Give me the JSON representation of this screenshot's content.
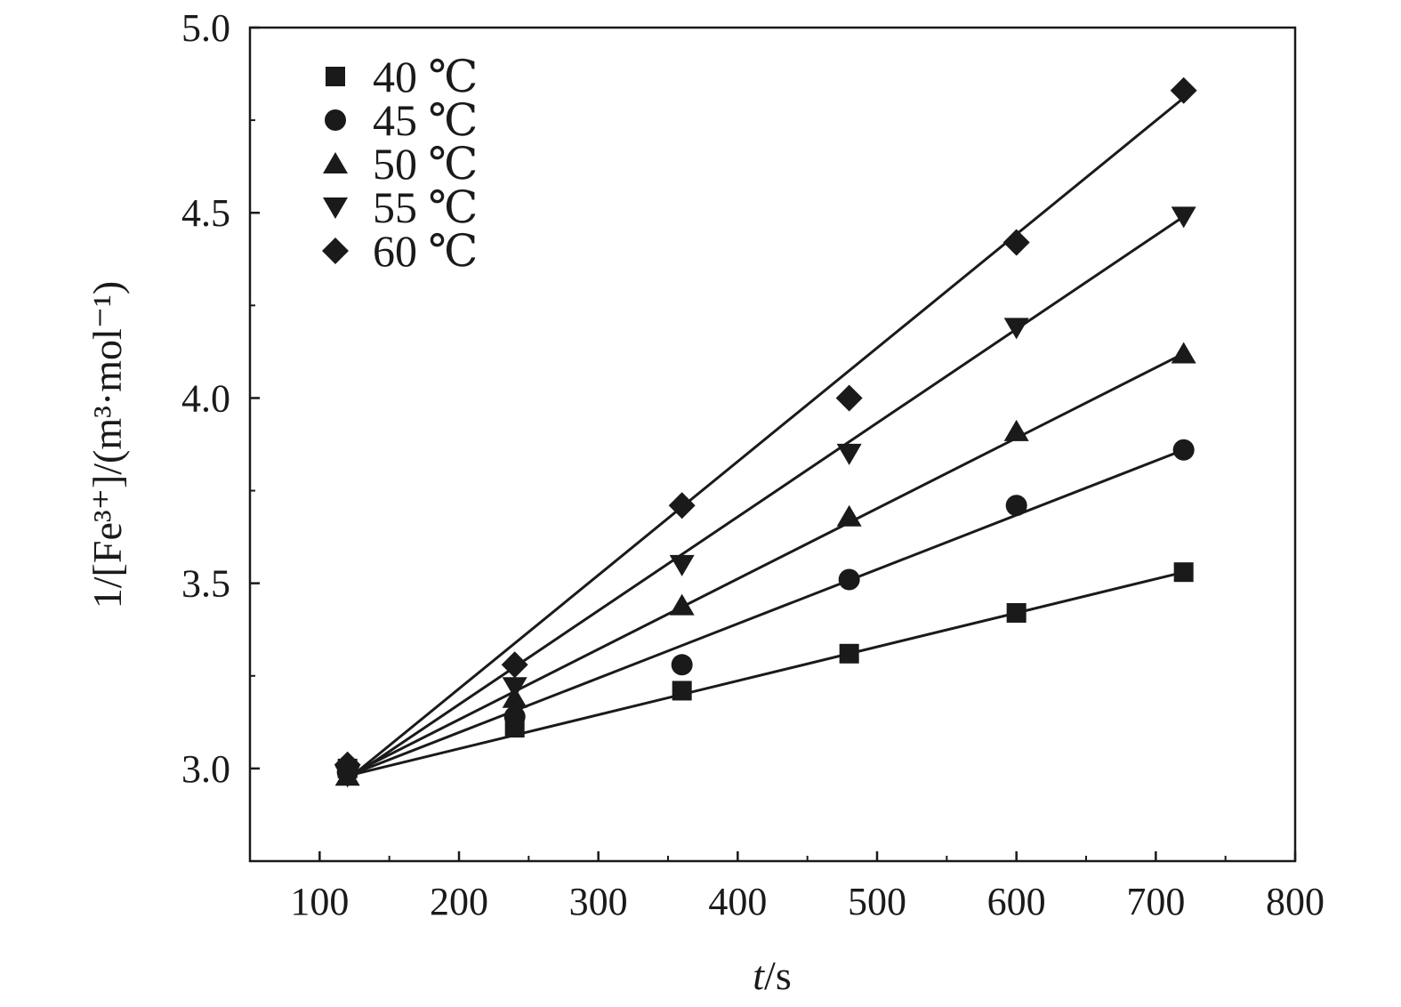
{
  "chart_data": {
    "type": "scatter",
    "xlabel_italic": "t",
    "xlabel_rest": "/s",
    "ylabel": "1/[Fe³⁺]/(m³·mol⁻¹)",
    "xlim": [
      50,
      800
    ],
    "ylim": [
      2.75,
      5.0
    ],
    "xticks": [
      100,
      200,
      300,
      400,
      500,
      600,
      700,
      800
    ],
    "yticks": [
      3.0,
      3.5,
      4.0,
      4.5,
      5.0
    ],
    "ytick_labels": [
      "3.0",
      "3.5",
      "4.0",
      "4.5",
      "5.0"
    ],
    "grid": false,
    "legend_position": "top-left",
    "marker_color": "#1a1a1a",
    "line_color": "#1a1a1a",
    "series": [
      {
        "name": "40 ℃",
        "marker": "square",
        "x": [
          120,
          240,
          360,
          480,
          600,
          720
        ],
        "y": [
          3.0,
          3.11,
          3.21,
          3.31,
          3.42,
          3.53
        ],
        "fit": [
          [
            120,
            2.98
          ],
          [
            720,
            3.53
          ]
        ]
      },
      {
        "name": "45 ℃",
        "marker": "circle",
        "x": [
          120,
          240,
          360,
          480,
          600,
          720
        ],
        "y": [
          2.99,
          3.14,
          3.28,
          3.51,
          3.71,
          3.86
        ],
        "fit": [
          [
            120,
            2.98
          ],
          [
            720,
            3.86
          ]
        ]
      },
      {
        "name": "50 ℃",
        "marker": "triangle-up",
        "x": [
          120,
          240,
          360,
          480,
          600,
          720
        ],
        "y": [
          2.98,
          3.19,
          3.44,
          3.68,
          3.91,
          4.12
        ],
        "fit": [
          [
            120,
            2.98
          ],
          [
            720,
            4.12
          ]
        ]
      },
      {
        "name": "55 ℃",
        "marker": "triangle-down",
        "x": [
          120,
          240,
          360,
          480,
          600,
          720
        ],
        "y": [
          2.98,
          3.22,
          3.55,
          3.85,
          4.19,
          4.49
        ],
        "fit": [
          [
            120,
            2.97
          ],
          [
            720,
            4.49
          ]
        ]
      },
      {
        "name": "60 ℃",
        "marker": "diamond",
        "x": [
          120,
          240,
          360,
          480,
          600,
          720
        ],
        "y": [
          3.01,
          3.28,
          3.71,
          4.0,
          4.42,
          4.83
        ],
        "fit": [
          [
            120,
            2.97
          ],
          [
            720,
            4.81
          ]
        ]
      }
    ]
  }
}
